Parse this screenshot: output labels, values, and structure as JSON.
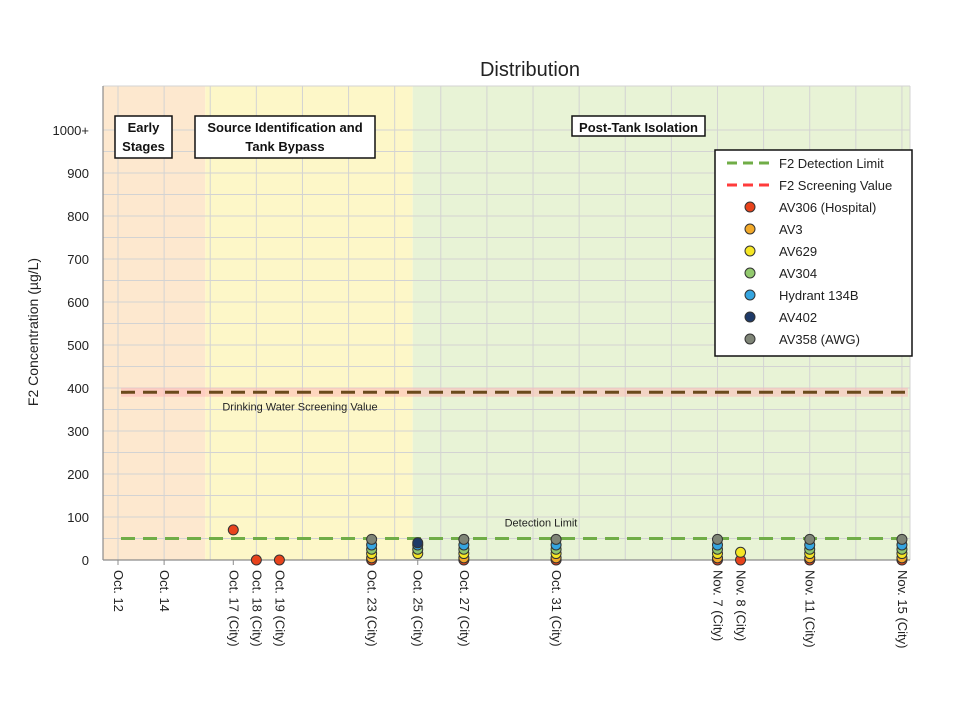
{
  "chart_data": {
    "type": "scatter",
    "title": "Distribution",
    "xlabel": "",
    "ylabel": "F2 Concentration (µg/L)",
    "ylim": [
      0,
      1050
    ],
    "y_ticks": [
      {
        "value": 0,
        "label": "0"
      },
      {
        "value": 100,
        "label": "100"
      },
      {
        "value": 200,
        "label": "200"
      },
      {
        "value": 300,
        "label": "300"
      },
      {
        "value": 400,
        "label": "400"
      },
      {
        "value": 500,
        "label": "500"
      },
      {
        "value": 600,
        "label": "600"
      },
      {
        "value": 700,
        "label": "700"
      },
      {
        "value": 800,
        "label": "800"
      },
      {
        "value": 900,
        "label": "900"
      },
      {
        "value": 1000,
        "label": "1000+"
      }
    ],
    "x_axis": {
      "type": "date",
      "start": "Oct. 12",
      "end": "Nov. 15",
      "day_range": [
        0,
        34
      ]
    },
    "x_ticks": [
      {
        "day": 0,
        "label": "Oct. 12"
      },
      {
        "day": 2,
        "label": "Oct. 14"
      },
      {
        "day": 5,
        "label": "Oct. 17 (City)"
      },
      {
        "day": 6,
        "label": "Oct. 18 (City)"
      },
      {
        "day": 7,
        "label": "Oct. 19 (City)"
      },
      {
        "day": 11,
        "label": "Oct. 23 (City)"
      },
      {
        "day": 13,
        "label": "Oct. 25 (City)"
      },
      {
        "day": 15,
        "label": "Oct. 27 (City)"
      },
      {
        "day": 19,
        "label": "Oct. 31 (City)"
      },
      {
        "day": 26,
        "label": "Nov. 7 (City)"
      },
      {
        "day": 27,
        "label": "Nov. 8 (City)"
      },
      {
        "day": 30,
        "label": "Nov. 11 (City)"
      },
      {
        "day": 34,
        "label": "Nov. 15 (City)"
      }
    ],
    "phases": [
      {
        "label": "Early\nStages",
        "start": "Oct. 12",
        "end": "Oct. 16",
        "color": "#fde8cf"
      },
      {
        "label": "Source Identification and\nTank Bypass",
        "start": "Oct. 16",
        "end": "Oct. 25",
        "color": "#fdf7c8"
      },
      {
        "label": "Post-Tank Isolation",
        "start": "Oct. 25",
        "end": "Nov. 15",
        "color": "#e8f3d6"
      }
    ],
    "reference_lines": [
      {
        "name": "F2 Detection Limit",
        "value": 50,
        "color": "#70ad47",
        "annotation": "Detection Limit"
      },
      {
        "name": "F2 Screening Value",
        "value": 390,
        "color": "#ff3b3b",
        "annotation": "Drinking Water Screening Value"
      }
    ],
    "series": [
      {
        "name": "AV306 (Hospital)",
        "color": "#e8431c",
        "points": [
          {
            "date": "Oct. 17 (City)",
            "y": 70
          },
          {
            "date": "Oct. 18 (City)",
            "y": 0
          },
          {
            "date": "Oct. 19 (City)",
            "y": 0
          },
          {
            "date": "Oct. 23 (City)",
            "y": 0
          },
          {
            "date": "Oct. 27 (City)",
            "y": 0
          },
          {
            "date": "Oct. 31 (City)",
            "y": 0
          },
          {
            "date": "Nov. 7 (City)",
            "y": 0
          },
          {
            "date": "Nov. 8 (City)",
            "y": 0
          },
          {
            "date": "Nov. 11 (City)",
            "y": 0
          },
          {
            "date": "Nov. 15 (City)",
            "y": 0
          }
        ]
      },
      {
        "name": "AV3",
        "color": "#f2a92a",
        "points": [
          {
            "date": "Oct. 23 (City)",
            "y": 5
          },
          {
            "date": "Oct. 27 (City)",
            "y": 5
          },
          {
            "date": "Oct. 31 (City)",
            "y": 5
          },
          {
            "date": "Nov. 7 (City)",
            "y": 5
          },
          {
            "date": "Nov. 11 (City)",
            "y": 5
          },
          {
            "date": "Nov. 15 (City)",
            "y": 5
          }
        ]
      },
      {
        "name": "AV629",
        "color": "#f5e625",
        "points": [
          {
            "date": "Oct. 23 (City)",
            "y": 15
          },
          {
            "date": "Oct. 25 (City)",
            "y": 15
          },
          {
            "date": "Oct. 27 (City)",
            "y": 15
          },
          {
            "date": "Oct. 31 (City)",
            "y": 15
          },
          {
            "date": "Nov. 7 (City)",
            "y": 15
          },
          {
            "date": "Nov. 8 (City)",
            "y": 18
          },
          {
            "date": "Nov. 11 (City)",
            "y": 15
          },
          {
            "date": "Nov. 15 (City)",
            "y": 15
          }
        ]
      },
      {
        "name": "AV304",
        "color": "#92c96e",
        "points": [
          {
            "date": "Oct. 23 (City)",
            "y": 25
          },
          {
            "date": "Oct. 25 (City)",
            "y": 25
          },
          {
            "date": "Oct. 27 (City)",
            "y": 25
          },
          {
            "date": "Oct. 31 (City)",
            "y": 25
          },
          {
            "date": "Nov. 7 (City)",
            "y": 25
          },
          {
            "date": "Nov. 11 (City)",
            "y": 25
          },
          {
            "date": "Nov. 15 (City)",
            "y": 25
          }
        ]
      },
      {
        "name": "Hydrant 134B",
        "color": "#35a5e0",
        "points": [
          {
            "date": "Oct. 23 (City)",
            "y": 35
          },
          {
            "date": "Oct. 25 (City)",
            "y": 35
          },
          {
            "date": "Oct. 27 (City)",
            "y": 35
          },
          {
            "date": "Oct. 31 (City)",
            "y": 35
          },
          {
            "date": "Nov. 7 (City)",
            "y": 35
          },
          {
            "date": "Nov. 11 (City)",
            "y": 35
          },
          {
            "date": "Nov. 15 (City)",
            "y": 35
          }
        ]
      },
      {
        "name": "AV402",
        "color": "#1f3a68",
        "points": [
          {
            "date": "Oct. 25 (City)",
            "y": 40
          }
        ]
      },
      {
        "name": "AV358 (AWG)",
        "color": "#7f8577",
        "points": [
          {
            "date": "Oct. 23 (City)",
            "y": 48
          },
          {
            "date": "Oct. 27 (City)",
            "y": 48
          },
          {
            "date": "Oct. 31 (City)",
            "y": 48
          },
          {
            "date": "Nov. 7 (City)",
            "y": 48
          },
          {
            "date": "Nov. 11 (City)",
            "y": 48
          },
          {
            "date": "Nov. 15 (City)",
            "y": 48
          }
        ]
      }
    ],
    "legend_position": "top-right",
    "grid": true
  }
}
